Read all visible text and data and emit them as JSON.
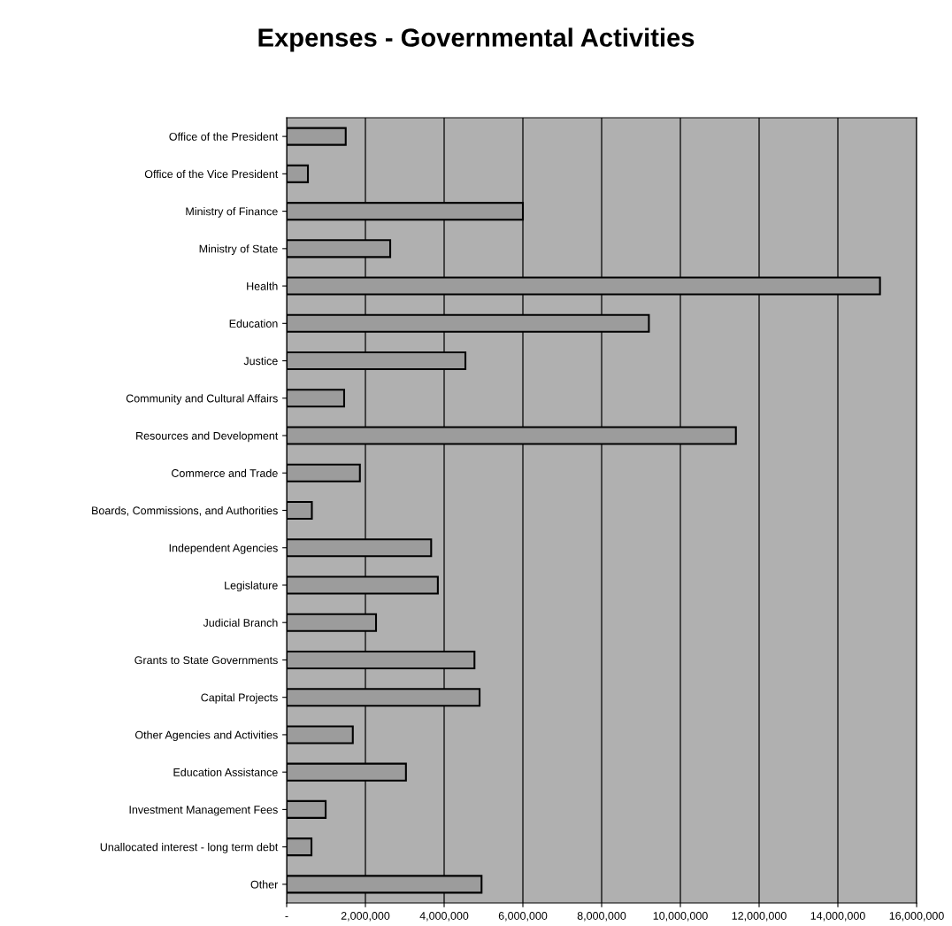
{
  "chart_data": {
    "type": "bar",
    "orientation": "horizontal",
    "title": "Expenses - Governmental Activities",
    "categories": [
      "Office of the President",
      "Office of the Vice President",
      "Ministry of Finance",
      "Ministry of State",
      "Health",
      "Education",
      "Justice",
      "Community and Cultural Affairs",
      "Resources and Development",
      "Commerce and Trade",
      "Boards, Commissions, and Authorities",
      "Independent Agencies",
      "Legislature",
      "Judicial Branch",
      "Grants to State Governments",
      "Capital Projects",
      "Other Agencies and Activities",
      "Education Assistance",
      "Investment Management Fees",
      "Unallocated interest - long term debt",
      "Other"
    ],
    "values": [
      1500000,
      540000,
      6000000,
      2630000,
      15070000,
      9200000,
      4540000,
      1460000,
      11410000,
      1860000,
      640000,
      3670000,
      3840000,
      2270000,
      4770000,
      4900000,
      1680000,
      3030000,
      990000,
      630000,
      4950000
    ],
    "color": "#9c9c9c",
    "xlim": [
      0,
      16000000
    ],
    "xticks": [
      {
        "value": 0,
        "label": "-"
      },
      {
        "value": 2000000,
        "label": "2,000,000"
      },
      {
        "value": 4000000,
        "label": "4,000,000"
      },
      {
        "value": 6000000,
        "label": "6,000,000"
      },
      {
        "value": 8000000,
        "label": "8,000,000"
      },
      {
        "value": 10000000,
        "label": "10,000,000"
      },
      {
        "value": 12000000,
        "label": "12,000,000"
      },
      {
        "value": 14000000,
        "label": "14,000,000"
      },
      {
        "value": 16000000,
        "label": "16,000,000"
      }
    ],
    "grid": "x",
    "legend": false
  }
}
